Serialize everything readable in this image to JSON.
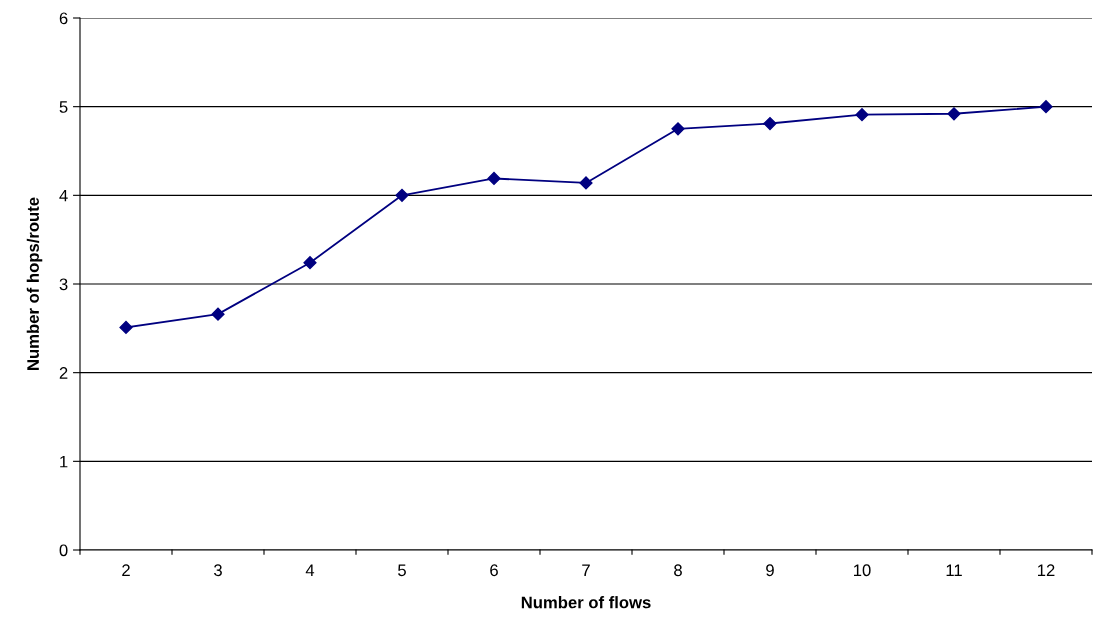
{
  "chart_data": {
    "type": "line",
    "xlabel": "Number of flows",
    "ylabel": "Number of hops/route",
    "categories": [
      "2",
      "3",
      "4",
      "5",
      "6",
      "7",
      "8",
      "9",
      "10",
      "11",
      "12"
    ],
    "series": [
      {
        "color": "#000080",
        "values": [
          2.51,
          2.66,
          3.24,
          4.0,
          4.19,
          4.14,
          4.75,
          4.81,
          4.91,
          4.92,
          5.0
        ]
      }
    ],
    "ylim": [
      0,
      6
    ],
    "yticks": [
      0,
      1,
      2,
      3,
      4,
      5,
      6
    ],
    "grid": "y",
    "marker": "diamond",
    "line_style": "solid"
  }
}
